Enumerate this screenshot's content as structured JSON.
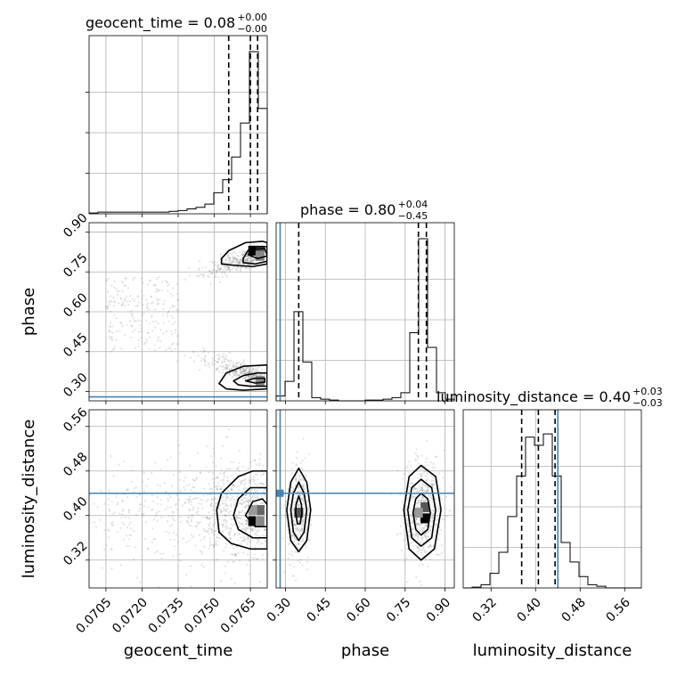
{
  "chart_data": {
    "type": "corner",
    "parameters": [
      "geocent_time",
      "phase",
      "luminosity_distance"
    ],
    "titles": [
      {
        "param": "geocent_time",
        "text": "geocent_time = 0.08",
        "plus": "+0.00",
        "minus": "−0.00"
      },
      {
        "param": "phase",
        "text": "phase = 0.80",
        "plus": "+0.04",
        "minus": "−0.45"
      },
      {
        "param": "luminosity_distance",
        "text": "luminosity_distance = 0.40",
        "plus": "+0.03",
        "minus": "−0.03"
      }
    ],
    "axis_labels": {
      "geocent_time": "geocent_time",
      "phase": "phase",
      "luminosity_distance": "luminosity_distance"
    },
    "ranges": {
      "geocent_time": [
        0.0698,
        0.0772
      ],
      "phase": [
        0.265,
        0.935
      ],
      "luminosity_distance": [
        0.27,
        0.59
      ]
    },
    "ticks": {
      "geocent_time": [
        "0.0705",
        "0.0720",
        "0.0735",
        "0.0750",
        "0.0765"
      ],
      "phase": [
        "0.30",
        "0.45",
        "0.60",
        "0.75",
        "0.90"
      ],
      "luminosity_distance": [
        "0.32",
        "0.40",
        "0.48",
        "0.56"
      ]
    },
    "truths": {
      "phase": 0.28,
      "luminosity_distance": 0.44
    },
    "quantiles": {
      "geocent_time": [
        0.0756,
        0.0765,
        0.0768
      ],
      "phase": [
        0.35,
        0.8,
        0.83
      ],
      "luminosity_distance": [
        0.375,
        0.405,
        0.435
      ]
    },
    "histograms": {
      "geocent_time": {
        "edges": [
          0.0698,
          0.07017,
          0.07054,
          0.07091,
          0.07128,
          0.07165,
          0.07202,
          0.07239,
          0.07276,
          0.07313,
          0.0735,
          0.07387,
          0.07424,
          0.07461,
          0.07498,
          0.07535,
          0.07572,
          0.07609,
          0.07646,
          0.07683,
          0.0772
        ],
        "counts": [
          0.005,
          0.01,
          0.01,
          0.01,
          0.01,
          0.01,
          0.01,
          0.01,
          0.01,
          0.015,
          0.02,
          0.03,
          0.04,
          0.06,
          0.13,
          0.21,
          0.35,
          0.56,
          1.0,
          0.65
        ]
      },
      "phase": {
        "edges": [
          0.265,
          0.2985,
          0.332,
          0.3655,
          0.399,
          0.4325,
          0.466,
          0.4995,
          0.533,
          0.5665,
          0.6,
          0.6335,
          0.667,
          0.7005,
          0.734,
          0.7675,
          0.801,
          0.8345,
          0.868,
          0.9015,
          0.935
        ],
        "counts": [
          0.03,
          0.12,
          0.55,
          0.24,
          0.02,
          0.01,
          0.005,
          0.0,
          0.0,
          0.0,
          0.005,
          0.005,
          0.01,
          0.02,
          0.05,
          0.42,
          1.0,
          0.33,
          0.05,
          0.01
        ]
      },
      "luminosity_distance": {
        "edges": [
          0.27,
          0.286,
          0.302,
          0.318,
          0.334,
          0.35,
          0.366,
          0.382,
          0.398,
          0.414,
          0.43,
          0.446,
          0.462,
          0.478,
          0.494,
          0.51,
          0.526,
          0.542,
          0.558,
          0.574,
          0.59
        ],
        "counts": [
          0.0,
          0.005,
          0.02,
          0.09,
          0.22,
          0.44,
          0.69,
          0.93,
          0.88,
          0.95,
          0.69,
          0.28,
          0.16,
          0.07,
          0.02,
          0.01,
          0.0,
          0.0,
          0.0,
          0.0
        ]
      }
    },
    "contours": {
      "phase_vs_geocent_time": [
        {
          "level": "outer",
          "points": [
            [
              0.0753,
              0.8
            ],
            [
              0.0756,
              0.83
            ],
            [
              0.0763,
              0.86
            ],
            [
              0.077,
              0.865
            ],
            [
              0.0772,
              0.86
            ],
            [
              0.0772,
              0.78
            ],
            [
              0.0766,
              0.77
            ],
            [
              0.0758,
              0.775
            ],
            [
              0.0753,
              0.78
            ]
          ]
        },
        {
          "level": "mid",
          "points": [
            [
              0.0762,
              0.8
            ],
            [
              0.0764,
              0.83
            ],
            [
              0.0768,
              0.845
            ],
            [
              0.0772,
              0.845
            ],
            [
              0.0772,
              0.79
            ],
            [
              0.0767,
              0.78
            ],
            [
              0.0762,
              0.785
            ]
          ]
        },
        {
          "level": "inner",
          "points": [
            [
              0.0764,
              0.815
            ],
            [
              0.0767,
              0.835
            ],
            [
              0.0771,
              0.838
            ],
            [
              0.0772,
              0.81
            ],
            [
              0.0768,
              0.8
            ]
          ]
        },
        {
          "level": "outer",
          "points": [
            [
              0.0752,
              0.33
            ],
            [
              0.0755,
              0.37
            ],
            [
              0.0762,
              0.395
            ],
            [
              0.0772,
              0.4
            ],
            [
              0.0772,
              0.31
            ],
            [
              0.0762,
              0.305
            ],
            [
              0.0755,
              0.31
            ]
          ]
        },
        {
          "level": "mid",
          "points": [
            [
              0.0758,
              0.34
            ],
            [
              0.0762,
              0.36
            ],
            [
              0.0768,
              0.37
            ],
            [
              0.0772,
              0.37
            ],
            [
              0.0772,
              0.32
            ],
            [
              0.0765,
              0.32
            ],
            [
              0.076,
              0.325
            ]
          ]
        },
        {
          "level": "inner",
          "points": [
            [
              0.0763,
              0.34
            ],
            [
              0.0767,
              0.35
            ],
            [
              0.0771,
              0.35
            ],
            [
              0.0771,
              0.335
            ],
            [
              0.0767,
              0.332
            ]
          ]
        }
      ],
      "luminosity_distance_vs_geocent_time": [
        {
          "level": "outer",
          "points": [
            [
              0.0751,
              0.41
            ],
            [
              0.0753,
              0.44
            ],
            [
              0.076,
              0.47
            ],
            [
              0.0766,
              0.48
            ],
            [
              0.0772,
              0.48
            ],
            [
              0.0772,
              0.34
            ],
            [
              0.0765,
              0.34
            ],
            [
              0.0757,
              0.35
            ],
            [
              0.0752,
              0.37
            ]
          ]
        },
        {
          "level": "mid",
          "points": [
            [
              0.0758,
              0.4
            ],
            [
              0.076,
              0.43
            ],
            [
              0.0765,
              0.45
            ],
            [
              0.0772,
              0.45
            ],
            [
              0.0772,
              0.36
            ],
            [
              0.0766,
              0.36
            ],
            [
              0.076,
              0.375
            ]
          ]
        },
        {
          "level": "inner",
          "points": [
            [
              0.0763,
              0.4
            ],
            [
              0.0766,
              0.425
            ],
            [
              0.077,
              0.43
            ],
            [
              0.0772,
              0.42
            ],
            [
              0.0772,
              0.38
            ],
            [
              0.0767,
              0.38
            ]
          ]
        }
      ],
      "luminosity_distance_vs_phase": [
        {
          "level": "outer",
          "points": [
            [
              0.35,
              0.485
            ],
            [
              0.38,
              0.46
            ],
            [
              0.395,
              0.41
            ],
            [
              0.38,
              0.355
            ],
            [
              0.35,
              0.335
            ],
            [
              0.32,
              0.355
            ],
            [
              0.305,
              0.41
            ],
            [
              0.32,
              0.46
            ]
          ]
        },
        {
          "level": "mid",
          "points": [
            [
              0.35,
              0.46
            ],
            [
              0.37,
              0.44
            ],
            [
              0.38,
              0.41
            ],
            [
              0.37,
              0.37
            ],
            [
              0.35,
              0.355
            ],
            [
              0.33,
              0.37
            ],
            [
              0.32,
              0.41
            ],
            [
              0.33,
              0.44
            ]
          ]
        },
        {
          "level": "inner",
          "points": [
            [
              0.35,
              0.435
            ],
            [
              0.36,
              0.42
            ],
            [
              0.362,
              0.405
            ],
            [
              0.355,
              0.385
            ],
            [
              0.345,
              0.385
            ],
            [
              0.338,
              0.405
            ],
            [
              0.34,
              0.42
            ]
          ]
        },
        {
          "level": "outer",
          "points": [
            [
              0.81,
              0.49
            ],
            [
              0.865,
              0.47
            ],
            [
              0.885,
              0.41
            ],
            [
              0.86,
              0.34
            ],
            [
              0.81,
              0.32
            ],
            [
              0.765,
              0.34
            ],
            [
              0.745,
              0.41
            ],
            [
              0.765,
              0.47
            ]
          ]
        },
        {
          "level": "mid",
          "points": [
            [
              0.81,
              0.465
            ],
            [
              0.85,
              0.45
            ],
            [
              0.865,
              0.41
            ],
            [
              0.85,
              0.36
            ],
            [
              0.81,
              0.345
            ],
            [
              0.775,
              0.36
            ],
            [
              0.76,
              0.41
            ],
            [
              0.775,
              0.45
            ]
          ]
        },
        {
          "level": "inner",
          "points": [
            [
              0.81,
              0.44
            ],
            [
              0.835,
              0.43
            ],
            [
              0.845,
              0.405
            ],
            [
              0.835,
              0.375
            ],
            [
              0.81,
              0.365
            ],
            [
              0.79,
              0.375
            ],
            [
              0.78,
              0.405
            ],
            [
              0.79,
              0.43
            ]
          ]
        }
      ]
    },
    "density_cells": {
      "phase_vs_geocent_time": [
        {
          "x": 0.0766,
          "y": 0.83,
          "shade": "#000000"
        },
        {
          "x": 0.0769,
          "y": 0.83,
          "shade": "#555555"
        },
        {
          "x": 0.0769,
          "y": 0.81,
          "shade": "#888888"
        },
        {
          "x": 0.0769,
          "y": 0.34,
          "shade": "#888888"
        }
      ],
      "luminosity_distance_vs_geocent_time": [
        {
          "x": 0.0766,
          "y": 0.39,
          "shade": "#000000"
        },
        {
          "x": 0.0769,
          "y": 0.41,
          "shade": "#666666"
        },
        {
          "x": 0.0766,
          "y": 0.41,
          "shade": "#999999"
        },
        {
          "x": 0.0769,
          "y": 0.39,
          "shade": "#888888"
        }
      ],
      "luminosity_distance_vs_phase": [
        {
          "x": 0.35,
          "y": 0.405,
          "shade": "#555555"
        },
        {
          "x": 0.825,
          "y": 0.395,
          "shade": "#000000"
        },
        {
          "x": 0.825,
          "y": 0.415,
          "shade": "#555555"
        },
        {
          "x": 0.8,
          "y": 0.405,
          "shade": "#999999"
        }
      ]
    },
    "grid": true,
    "colors": {
      "truth": "#4682b4",
      "lines": "#000000",
      "scatter": "#7f7f7f"
    }
  }
}
